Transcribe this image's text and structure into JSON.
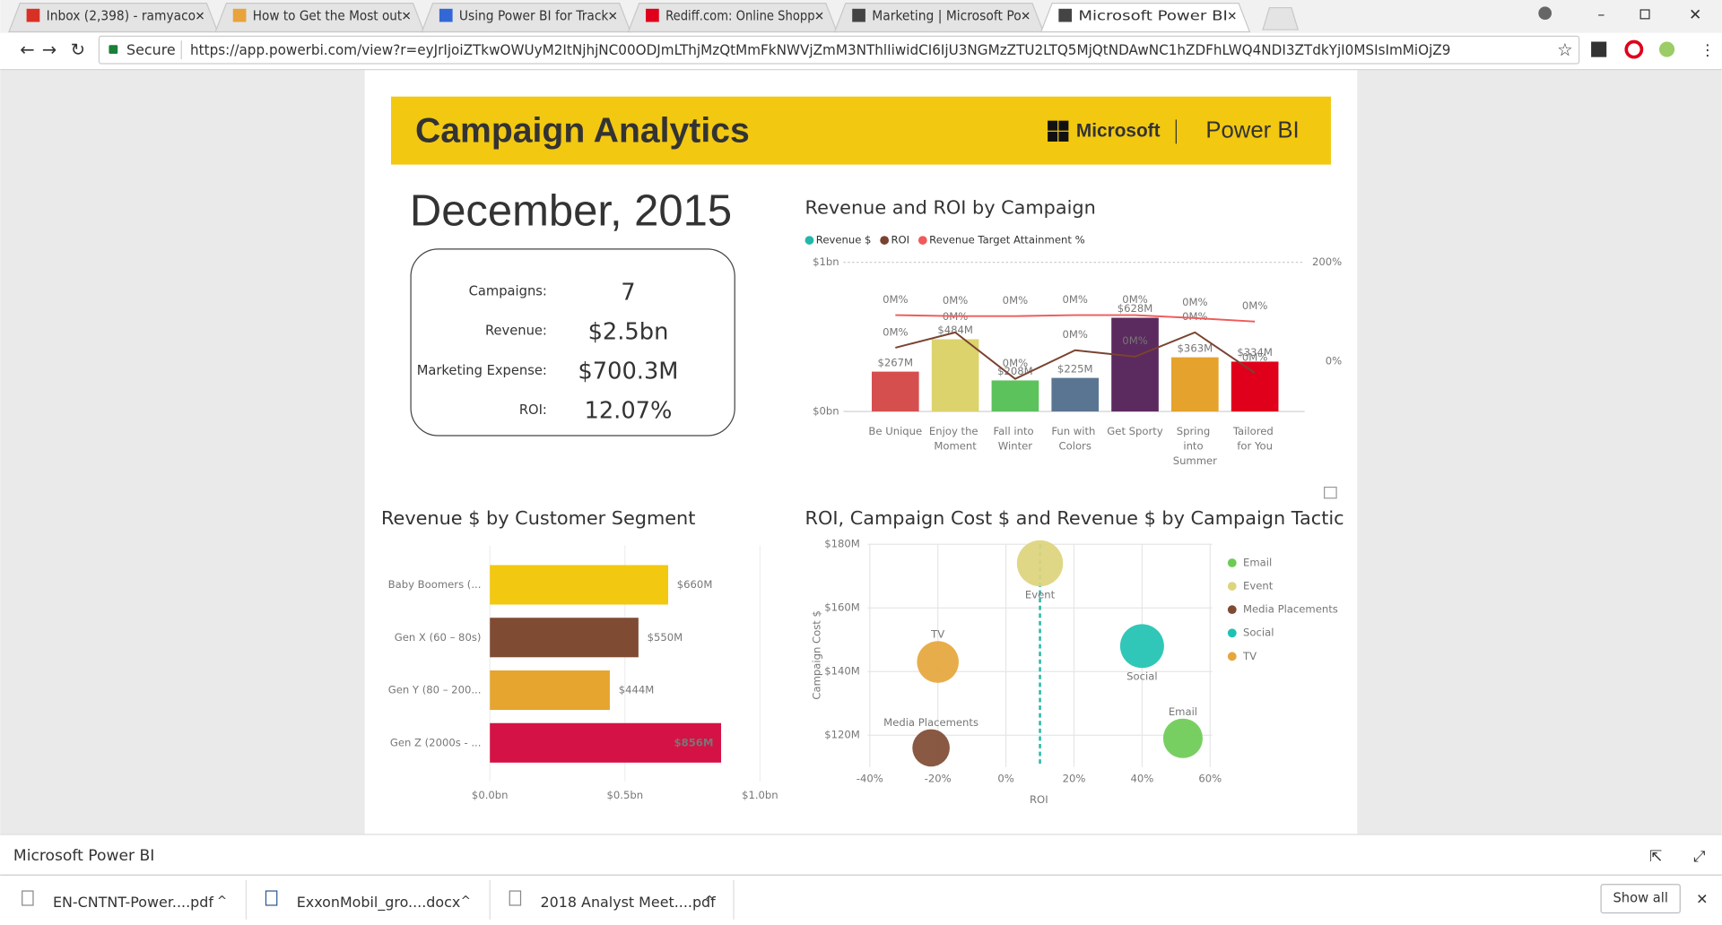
{
  "browser": {
    "tabs": [
      "Inbox (2,398) - ramyaco",
      "How to Get the Most out",
      "Using Power BI for Track",
      "Rediff.com: Online Shopp",
      "Marketing | Microsoft Po",
      "Microsoft Power BI"
    ],
    "secure": "Secure",
    "url": "https://app.powerbi.com/view?r=eyJrIjoiZTkwOWUyM2ItNjhjNC00ODJmLThjMzQtMmFkNWVjZmM3NThlIiwidCI6IjU3NGMzZTU2LTQ5MjQtNDAwNC1hZDFhLWQ4NDI3ZTdkYjI0MSIsImMiOjZ9"
  },
  "report": {
    "title": "Campaign Analytics",
    "brand": "Microsoft",
    "product": "Power BI",
    "date": "December, 2015",
    "kpis": [
      {
        "label": "Campaigns:",
        "value": "7"
      },
      {
        "label": "Revenue:",
        "value": "$2.5bn"
      },
      {
        "label": "Marketing Expense:",
        "value": "$700.3M"
      },
      {
        "label": "ROI:",
        "value": "12.07%"
      }
    ]
  },
  "chart_data": [
    {
      "type": "combo",
      "title": "Revenue and ROI by Campaign",
      "categories": [
        "Be Unique",
        "Enjoy the Moment",
        "Fall into Winter",
        "Fun with Colors",
        "Get Sporty",
        "Spring into Summer",
        "Tailored for You"
      ],
      "series": [
        {
          "name": "Revenue $",
          "color": "#21b8a8",
          "kind": "bar",
          "values": [
            267000000,
            484000000,
            208000000,
            225000000,
            628000000,
            363000000,
            334000000
          ],
          "value_labels": [
            "$267M",
            "$484M",
            "$208M",
            "$225M",
            "$628M",
            "$363M",
            "$334M"
          ],
          "bar_colors": [
            "#d64f4f",
            "#dcd36c",
            "#5cc25c",
            "#5a7591",
            "#5b2a5e",
            "#e5a22c",
            "#e0001b"
          ]
        },
        {
          "name": "ROI",
          "color": "#7a4330",
          "kind": "line",
          "axis": "y2",
          "values": [
            27,
            58,
            -36,
            22,
            9,
            58,
            -24
          ],
          "value_labels": [
            "0M%",
            "0M%",
            "0M%",
            "0M%",
            "0M%",
            "0M%",
            "0M%"
          ]
        },
        {
          "name": "Revenue Target Attainment %",
          "color": "#f05a5a",
          "kind": "line",
          "axis": "y2",
          "values": [
            93,
            91,
            91,
            93,
            93,
            87,
            80
          ],
          "value_labels": [
            "0M%",
            "0M%",
            "0M%",
            "0M%",
            "0M%",
            "0M%",
            "0M%"
          ]
        }
      ],
      "ylim": [
        0,
        1000000000
      ],
      "yticks": [
        {
          "value": 0,
          "label": "$0bn"
        },
        {
          "value": 1000000000,
          "label": "$1bn"
        }
      ],
      "y2lim": [
        -102,
        200
      ],
      "y2ticks": [
        {
          "value": 0,
          "label": "0%"
        },
        {
          "value": 200,
          "label": "200%"
        }
      ],
      "grid": true
    },
    {
      "type": "hbar",
      "title": "Revenue $ by Customer Segment",
      "categories": [
        "Baby Boomers (...",
        "Gen X (60 – 80s)",
        "Gen Y (80 – 200...",
        "Gen Z (2000s - ..."
      ],
      "values": [
        660000000,
        550000000,
        444000000,
        856000000
      ],
      "value_labels": [
        "$660M",
        "$550M",
        "$444M",
        "$856M"
      ],
      "colors": [
        "#f2c811",
        "#7f4b33",
        "#e5a52e",
        "#d41245"
      ],
      "xlim": [
        0,
        1000000000
      ],
      "xticks": [
        {
          "value": 0,
          "label": "$0.0bn"
        },
        {
          "value": 500000000,
          "label": "$0.5bn"
        },
        {
          "value": 1000000000,
          "label": "$1.0bn"
        }
      ],
      "grid": true
    },
    {
      "type": "bubble",
      "title": "ROI, Campaign Cost $ and Revenue $ by Campaign Tactic",
      "xlabel": "ROI",
      "ylabel": "Campaign Cost $",
      "series": [
        {
          "name": "Email",
          "color": "#6ccb54",
          "x": 52,
          "y": 119000000,
          "size": 18
        },
        {
          "name": "Event",
          "color": "#ddd47c",
          "x": 10,
          "y": 174000000,
          "size": 21
        },
        {
          "name": "Media Placements",
          "color": "#7f4b33",
          "x": -22,
          "y": 116000000,
          "size": 17
        },
        {
          "name": "Social",
          "color": "#1fc2b2",
          "x": 40,
          "y": 148000000,
          "size": 20
        },
        {
          "name": "TV",
          "color": "#e6a63c",
          "x": -20,
          "y": 143000000,
          "size": 19
        }
      ],
      "reference_x": 10,
      "xlim": [
        -40,
        60
      ],
      "xticks": [
        {
          "value": -40,
          "label": "-40%"
        },
        {
          "value": -20,
          "label": "-20%"
        },
        {
          "value": 0,
          "label": "0%"
        },
        {
          "value": 20,
          "label": "20%"
        },
        {
          "value": 40,
          "label": "40%"
        },
        {
          "value": 60,
          "label": "60%"
        }
      ],
      "ylim": [
        110000000,
        180000000
      ],
      "yticks": [
        {
          "value": 120000000,
          "label": "$120M"
        },
        {
          "value": 140000000,
          "label": "$140M"
        },
        {
          "value": 160000000,
          "label": "$160M"
        },
        {
          "value": 180000000,
          "label": "$180M"
        }
      ],
      "grid": true
    }
  ],
  "footer": {
    "app": "Microsoft Power BI",
    "downloads": [
      "EN-CNTNT-Power....pdf",
      "ExxonMobil_gro....docx",
      "2018 Analyst Meet....pdf"
    ],
    "show_all": "Show all"
  }
}
